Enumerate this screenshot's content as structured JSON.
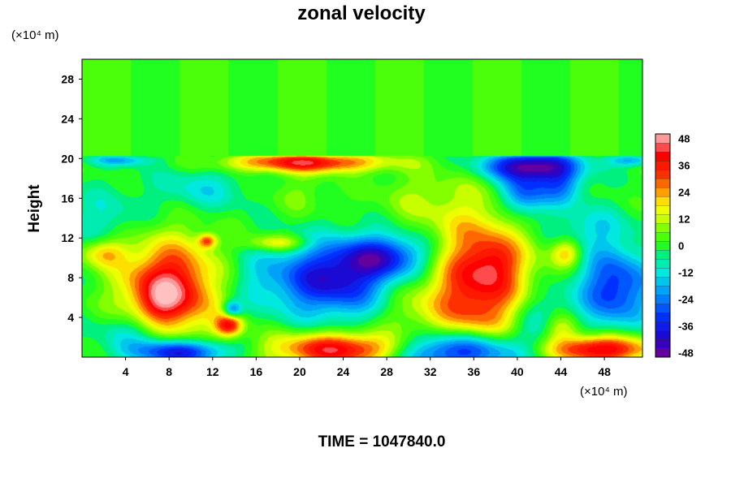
{
  "chart_data": {
    "type": "heatmap",
    "title": "zonal velocity",
    "ylabel": "Height",
    "x_unit": "(×10⁴ m)",
    "y_unit": "(×10⁴ m)",
    "footer": "TIME = 1047840.0",
    "xlim": [
      0,
      51.5
    ],
    "ylim": [
      0,
      30
    ],
    "x_ticks": [
      4,
      8,
      12,
      16,
      20,
      24,
      28,
      32,
      36,
      40,
      44,
      48
    ],
    "y_ticks": [
      4,
      8,
      12,
      16,
      20,
      24,
      28
    ],
    "colorbar": {
      "min": -50,
      "max": 50,
      "step": 4,
      "ticks": [
        48,
        36,
        24,
        12,
        0,
        -12,
        -24,
        -36,
        -48
      ]
    },
    "colormap": [
      [
        -50,
        "#7a0090"
      ],
      [
        -42,
        "#2200c8"
      ],
      [
        -32,
        "#0030ff"
      ],
      [
        -22,
        "#0090ff"
      ],
      [
        -12,
        "#00e8e0"
      ],
      [
        -4,
        "#00f080"
      ],
      [
        0,
        "#20ff20"
      ],
      [
        6,
        "#60ff00"
      ],
      [
        12,
        "#c8ff00"
      ],
      [
        18,
        "#ffff00"
      ],
      [
        24,
        "#ffa000"
      ],
      [
        32,
        "#ff3000"
      ],
      [
        40,
        "#ff0000"
      ],
      [
        46,
        "#ff7070"
      ],
      [
        50,
        "#ffc0c0"
      ]
    ],
    "background_value": 2,
    "features": [
      {
        "x": 8,
        "y": 6.8,
        "sx": 3.0,
        "sy": 3.4,
        "value": 46
      },
      {
        "x": 7.2,
        "y": 5.5,
        "sx": 1.3,
        "sy": 1.3,
        "value": 10
      },
      {
        "x": 36.5,
        "y": 7.5,
        "sx": 3.2,
        "sy": 5.0,
        "value": 40
      },
      {
        "x": 38.0,
        "y": 9.5,
        "sx": 1.5,
        "sy": 1.5,
        "value": 10
      },
      {
        "x": 23.0,
        "y": 7.8,
        "sx": 4.0,
        "sy": 2.6,
        "value": -40
      },
      {
        "x": 49.0,
        "y": 7.0,
        "sx": 2.4,
        "sy": 2.8,
        "value": -34
      },
      {
        "x": 34.5,
        "y": 0.6,
        "sx": 4.5,
        "sy": 1.4,
        "value": -46
      },
      {
        "x": 9.0,
        "y": 0.5,
        "sx": 3.0,
        "sy": 0.9,
        "value": -42
      },
      {
        "x": 24.0,
        "y": 0.8,
        "sx": 4.5,
        "sy": 1.2,
        "value": 44
      },
      {
        "x": 47.5,
        "y": 0.8,
        "sx": 3.5,
        "sy": 1.0,
        "value": 46
      },
      {
        "x": 13.5,
        "y": 3.2,
        "sx": 0.9,
        "sy": 0.8,
        "value": 36
      },
      {
        "x": 13.8,
        "y": 4.8,
        "sx": 0.6,
        "sy": 0.6,
        "value": -28
      },
      {
        "x": 20.5,
        "y": 19.6,
        "sx": 5.0,
        "sy": 0.7,
        "value": 40
      },
      {
        "x": 41.0,
        "y": 19.3,
        "sx": 3.0,
        "sy": 1.0,
        "value": -44
      },
      {
        "x": 40.5,
        "y": 16.5,
        "sx": 1.5,
        "sy": 1.6,
        "value": -30
      },
      {
        "x": 44.0,
        "y": 17.5,
        "sx": 1.5,
        "sy": 1.5,
        "value": -24
      },
      {
        "x": 28.0,
        "y": 10.2,
        "sx": 3.0,
        "sy": 1.5,
        "value": -30
      },
      {
        "x": 5.0,
        "y": 2.5,
        "sx": 2.5,
        "sy": 1.5,
        "value": -16
      },
      {
        "x": 16.0,
        "y": 8.0,
        "sx": 2.0,
        "sy": 2.0,
        "value": -6
      },
      {
        "x": 30.0,
        "y": 5.0,
        "sx": 2.5,
        "sy": 2.5,
        "value": 10
      },
      {
        "x": 42.0,
        "y": 4.0,
        "sx": 2.0,
        "sy": 2.0,
        "value": -14
      },
      {
        "x": 2.0,
        "y": 14.0,
        "sx": 2.5,
        "sy": 2.0,
        "value": -10
      },
      {
        "x": 11.0,
        "y": 17.0,
        "sx": 3.0,
        "sy": 1.5,
        "value": -12
      },
      {
        "x": 20.0,
        "y": 16.5,
        "sx": 2.0,
        "sy": 1.5,
        "value": 6
      },
      {
        "x": 31.0,
        "y": 16.0,
        "sx": 3.0,
        "sy": 2.0,
        "value": 8
      },
      {
        "x": 46.5,
        "y": 13.0,
        "sx": 2.5,
        "sy": 1.5,
        "value": -12
      },
      {
        "x": 11.5,
        "y": 11.7,
        "sx": 0.6,
        "sy": 0.5,
        "value": 28
      },
      {
        "x": 18.0,
        "y": 11.5,
        "sx": 2.0,
        "sy": 0.6,
        "value": 20
      },
      {
        "x": 2.0,
        "y": 10.5,
        "sx": 1.5,
        "sy": 1.0,
        "value": 20
      },
      {
        "x": 44.5,
        "y": 10.5,
        "sx": 1.0,
        "sy": 1.0,
        "value": 22
      },
      {
        "x": 44.0,
        "y": 3.0,
        "sx": 1.2,
        "sy": 1.0,
        "value": 18
      },
      {
        "x": 50.5,
        "y": 19.8,
        "sx": 1.5,
        "sy": 0.4,
        "value": -20
      },
      {
        "x": 3.5,
        "y": 19.8,
        "sx": 2.0,
        "sy": 0.4,
        "value": -18
      }
    ]
  }
}
